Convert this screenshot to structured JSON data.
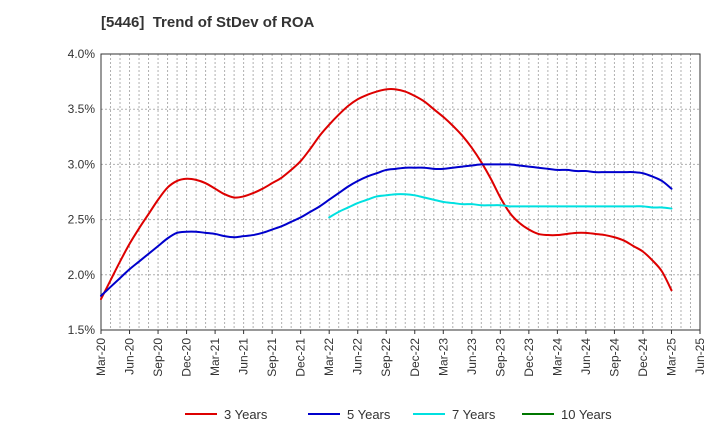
{
  "chart_data": {
    "type": "line",
    "title": "[5446]  Trend of StDev of ROA",
    "xlabel": "",
    "ylabel": "",
    "x_ticks": [
      "Mar-20",
      "Jun-20",
      "Sep-20",
      "Dec-20",
      "Mar-21",
      "Jun-21",
      "Sep-21",
      "Dec-21",
      "Mar-22",
      "Jun-22",
      "Sep-22",
      "Dec-22",
      "Mar-23",
      "Jun-23",
      "Sep-23",
      "Dec-23",
      "Mar-24",
      "Jun-24",
      "Sep-24",
      "Dec-24",
      "Mar-25",
      "Jun-25"
    ],
    "x_range": [
      "2020-03",
      "2025-06"
    ],
    "y_range": [
      1.5,
      4.0
    ],
    "y_ticks": [
      "1.5%",
      "2.0%",
      "2.5%",
      "3.0%",
      "3.5%",
      "4.0%"
    ],
    "y_unit": "%",
    "grid": true,
    "legend_position": "bottom",
    "series": [
      {
        "name": "3 Years",
        "color": "#dd0000",
        "points": [
          [
            "2020-03",
            1.78
          ],
          [
            "2020-04",
            1.95
          ],
          [
            "2020-05",
            2.12
          ],
          [
            "2020-06",
            2.28
          ],
          [
            "2020-07",
            2.42
          ],
          [
            "2020-08",
            2.55
          ],
          [
            "2020-09",
            2.68
          ],
          [
            "2020-10",
            2.79
          ],
          [
            "2020-11",
            2.85
          ],
          [
            "2020-12",
            2.87
          ],
          [
            "2021-01",
            2.86
          ],
          [
            "2021-02",
            2.83
          ],
          [
            "2021-03",
            2.78
          ],
          [
            "2021-04",
            2.73
          ],
          [
            "2021-05",
            2.7
          ],
          [
            "2021-06",
            2.71
          ],
          [
            "2021-07",
            2.74
          ],
          [
            "2021-08",
            2.78
          ],
          [
            "2021-09",
            2.83
          ],
          [
            "2021-10",
            2.88
          ],
          [
            "2021-11",
            2.95
          ],
          [
            "2021-12",
            3.03
          ],
          [
            "2022-01",
            3.14
          ],
          [
            "2022-02",
            3.26
          ],
          [
            "2022-03",
            3.36
          ],
          [
            "2022-04",
            3.45
          ],
          [
            "2022-05",
            3.53
          ],
          [
            "2022-06",
            3.59
          ],
          [
            "2022-07",
            3.63
          ],
          [
            "2022-08",
            3.66
          ],
          [
            "2022-09",
            3.68
          ],
          [
            "2022-10",
            3.68
          ],
          [
            "2022-11",
            3.66
          ],
          [
            "2022-12",
            3.62
          ],
          [
            "2023-01",
            3.57
          ],
          [
            "2023-02",
            3.5
          ],
          [
            "2023-03",
            3.43
          ],
          [
            "2023-04",
            3.35
          ],
          [
            "2023-05",
            3.26
          ],
          [
            "2023-06",
            3.15
          ],
          [
            "2023-07",
            3.02
          ],
          [
            "2023-08",
            2.87
          ],
          [
            "2023-09",
            2.7
          ],
          [
            "2023-10",
            2.56
          ],
          [
            "2023-11",
            2.47
          ],
          [
            "2023-12",
            2.41
          ],
          [
            "2024-01",
            2.37
          ],
          [
            "2024-02",
            2.36
          ],
          [
            "2024-03",
            2.36
          ],
          [
            "2024-04",
            2.37
          ],
          [
            "2024-05",
            2.38
          ],
          [
            "2024-06",
            2.38
          ],
          [
            "2024-07",
            2.37
          ],
          [
            "2024-08",
            2.36
          ],
          [
            "2024-09",
            2.34
          ],
          [
            "2024-10",
            2.31
          ],
          [
            "2024-11",
            2.26
          ],
          [
            "2024-12",
            2.21
          ],
          [
            "2025-01",
            2.13
          ],
          [
            "2025-02",
            2.03
          ],
          [
            "2025-03",
            1.86
          ]
        ]
      },
      {
        "name": "5 Years",
        "color": "#0000cc",
        "points": [
          [
            "2020-03",
            1.81
          ],
          [
            "2020-04",
            1.89
          ],
          [
            "2020-05",
            1.97
          ],
          [
            "2020-06",
            2.05
          ],
          [
            "2020-07",
            2.12
          ],
          [
            "2020-08",
            2.19
          ],
          [
            "2020-09",
            2.26
          ],
          [
            "2020-10",
            2.33
          ],
          [
            "2020-11",
            2.38
          ],
          [
            "2020-12",
            2.39
          ],
          [
            "2021-01",
            2.39
          ],
          [
            "2021-02",
            2.38
          ],
          [
            "2021-03",
            2.37
          ],
          [
            "2021-04",
            2.35
          ],
          [
            "2021-05",
            2.34
          ],
          [
            "2021-06",
            2.35
          ],
          [
            "2021-07",
            2.36
          ],
          [
            "2021-08",
            2.38
          ],
          [
            "2021-09",
            2.41
          ],
          [
            "2021-10",
            2.44
          ],
          [
            "2021-11",
            2.48
          ],
          [
            "2021-12",
            2.52
          ],
          [
            "2022-01",
            2.57
          ],
          [
            "2022-02",
            2.62
          ],
          [
            "2022-03",
            2.68
          ],
          [
            "2022-04",
            2.74
          ],
          [
            "2022-05",
            2.8
          ],
          [
            "2022-06",
            2.85
          ],
          [
            "2022-07",
            2.89
          ],
          [
            "2022-08",
            2.92
          ],
          [
            "2022-09",
            2.95
          ],
          [
            "2022-10",
            2.96
          ],
          [
            "2022-11",
            2.97
          ],
          [
            "2022-12",
            2.97
          ],
          [
            "2023-01",
            2.97
          ],
          [
            "2023-02",
            2.96
          ],
          [
            "2023-03",
            2.96
          ],
          [
            "2023-04",
            2.97
          ],
          [
            "2023-05",
            2.98
          ],
          [
            "2023-06",
            2.99
          ],
          [
            "2023-07",
            3.0
          ],
          [
            "2023-08",
            3.0
          ],
          [
            "2023-09",
            3.0
          ],
          [
            "2023-10",
            3.0
          ],
          [
            "2023-11",
            2.99
          ],
          [
            "2023-12",
            2.98
          ],
          [
            "2024-01",
            2.97
          ],
          [
            "2024-02",
            2.96
          ],
          [
            "2024-03",
            2.95
          ],
          [
            "2024-04",
            2.95
          ],
          [
            "2024-05",
            2.94
          ],
          [
            "2024-06",
            2.94
          ],
          [
            "2024-07",
            2.93
          ],
          [
            "2024-08",
            2.93
          ],
          [
            "2024-09",
            2.93
          ],
          [
            "2024-10",
            2.93
          ],
          [
            "2024-11",
            2.93
          ],
          [
            "2024-12",
            2.92
          ],
          [
            "2025-01",
            2.89
          ],
          [
            "2025-02",
            2.85
          ],
          [
            "2025-03",
            2.78
          ]
        ]
      },
      {
        "name": "7 Years",
        "color": "#00e0e0",
        "points": [
          [
            "2022-03",
            2.52
          ],
          [
            "2022-04",
            2.57
          ],
          [
            "2022-05",
            2.61
          ],
          [
            "2022-06",
            2.65
          ],
          [
            "2022-07",
            2.68
          ],
          [
            "2022-08",
            2.71
          ],
          [
            "2022-09",
            2.72
          ],
          [
            "2022-10",
            2.73
          ],
          [
            "2022-11",
            2.73
          ],
          [
            "2022-12",
            2.72
          ],
          [
            "2023-01",
            2.7
          ],
          [
            "2023-02",
            2.68
          ],
          [
            "2023-03",
            2.66
          ],
          [
            "2023-04",
            2.65
          ],
          [
            "2023-05",
            2.64
          ],
          [
            "2023-06",
            2.64
          ],
          [
            "2023-07",
            2.63
          ],
          [
            "2023-08",
            2.63
          ],
          [
            "2023-09",
            2.63
          ],
          [
            "2023-10",
            2.62
          ],
          [
            "2023-11",
            2.62
          ],
          [
            "2023-12",
            2.62
          ],
          [
            "2024-01",
            2.62
          ],
          [
            "2024-02",
            2.62
          ],
          [
            "2024-03",
            2.62
          ],
          [
            "2024-04",
            2.62
          ],
          [
            "2024-05",
            2.62
          ],
          [
            "2024-06",
            2.62
          ],
          [
            "2024-07",
            2.62
          ],
          [
            "2024-08",
            2.62
          ],
          [
            "2024-09",
            2.62
          ],
          [
            "2024-10",
            2.62
          ],
          [
            "2024-11",
            2.62
          ],
          [
            "2024-12",
            2.62
          ],
          [
            "2025-01",
            2.61
          ],
          [
            "2025-02",
            2.61
          ],
          [
            "2025-03",
            2.6
          ]
        ]
      },
      {
        "name": "10 Years",
        "color": "#007700",
        "points": []
      }
    ]
  }
}
